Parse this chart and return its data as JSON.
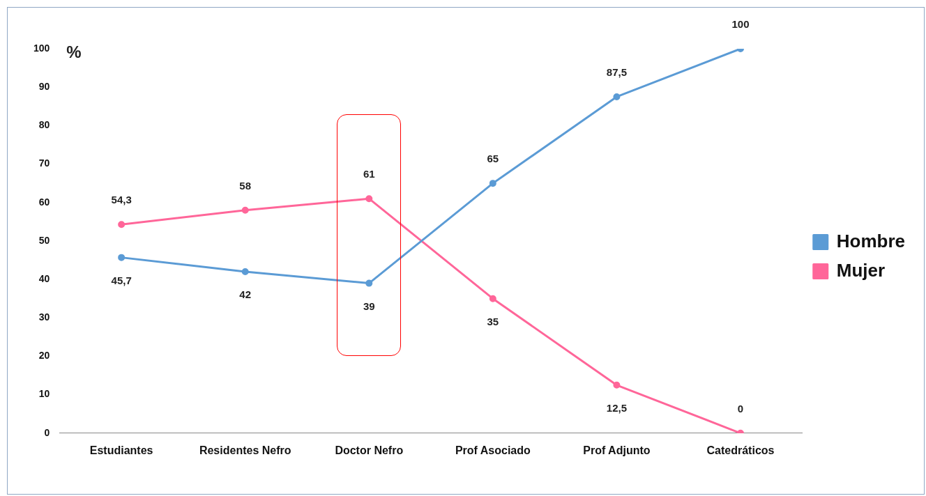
{
  "chart_data": {
    "type": "line",
    "ylabel": "%",
    "categories": [
      "Estudiantes",
      "Residentes Nefro",
      "Doctor Nefro",
      "Prof Asociado",
      "Prof Adjunto",
      "Catedráticos"
    ],
    "series": [
      {
        "name": "Hombre",
        "color": "#5b9bd5",
        "values": [
          45.7,
          42,
          39,
          65,
          87.5,
          100
        ],
        "value_labels": [
          "45,7",
          "42",
          "39",
          "65",
          "87,5",
          "100"
        ]
      },
      {
        "name": "Mujer",
        "color": "#ff6699",
        "values": [
          54.3,
          58,
          61,
          35,
          12.5,
          0
        ],
        "value_labels": [
          "54,3",
          "58",
          "61",
          "35",
          "12,5",
          "0"
        ]
      }
    ],
    "ylim": [
      0,
      100
    ],
    "yticks": [
      0,
      10,
      20,
      30,
      40,
      50,
      60,
      70,
      80,
      90,
      100
    ],
    "grid": false,
    "legend": "right",
    "marker": "circle",
    "line_style": "solid"
  }
}
